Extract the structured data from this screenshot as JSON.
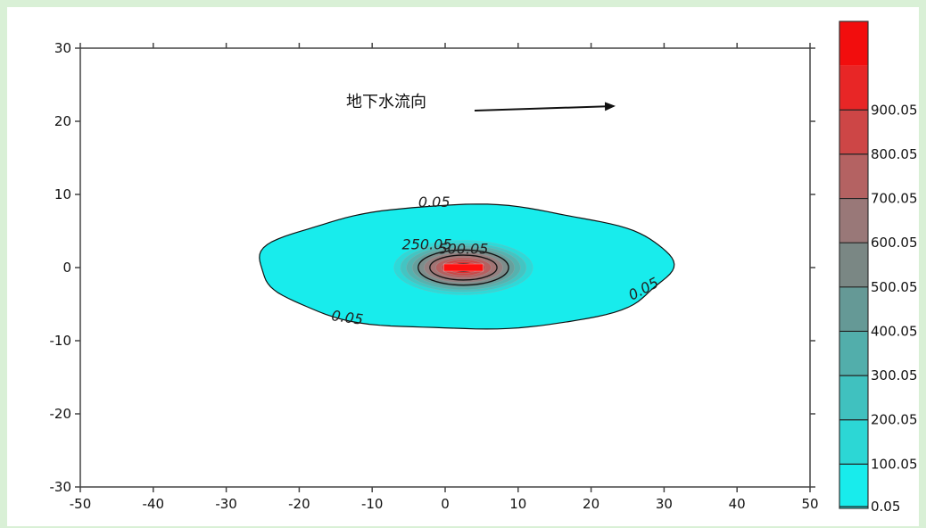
{
  "chart_data": {
    "type": "contour",
    "title": "",
    "xlabel": "",
    "ylabel": "",
    "xlim": [
      -50,
      50
    ],
    "ylim": [
      -30,
      30
    ],
    "x_ticks": [
      -50,
      -40,
      -30,
      -20,
      -10,
      0,
      10,
      20,
      30,
      40,
      50
    ],
    "y_ticks": [
      -30,
      -20,
      -10,
      0,
      10,
      20,
      30
    ],
    "annotation": {
      "text": "地下水流向",
      "arrow": "right"
    },
    "plume": {
      "center": [
        2.5,
        0
      ],
      "outer_contour": {
        "level": 0.05,
        "x_range": [
          -25.5,
          31
        ],
        "y_range": [
          -8.5,
          8.5
        ]
      },
      "peak": 900.05
    },
    "contour_labels": [
      {
        "text": "0.05",
        "x": -1.5,
        "y": 8.3
      },
      {
        "text": "0.05",
        "x": -13.5,
        "y": -7.5
      },
      {
        "text": "0.05",
        "x": 27.5,
        "y": -3.5
      },
      {
        "text": "250.05",
        "x": -2.5,
        "y": 2.5
      },
      {
        "text": "500.05",
        "x": 2.5,
        "y": 1.9
      }
    ],
    "colorbar": {
      "levels": [
        0.05,
        100.05,
        200.05,
        300.05,
        400.05,
        500.05,
        600.05,
        700.05,
        800.05,
        900.05
      ],
      "labels": [
        "0.05",
        "100.05",
        "200.05",
        "300.05",
        "400.05",
        "500.05",
        "600.05",
        "700.05",
        "800.05",
        "900.05"
      ],
      "colors": [
        "#18ecec",
        "#2cd7d5",
        "#40c1bf",
        "#52aeab",
        "#659996",
        "#7a8784",
        "#997878",
        "#b46262",
        "#cd4646",
        "#e82626",
        "#f20d0d"
      ],
      "low_color": "#18ecec",
      "high_color": "#f20d0d"
    },
    "contour_line_color": "#111111"
  }
}
